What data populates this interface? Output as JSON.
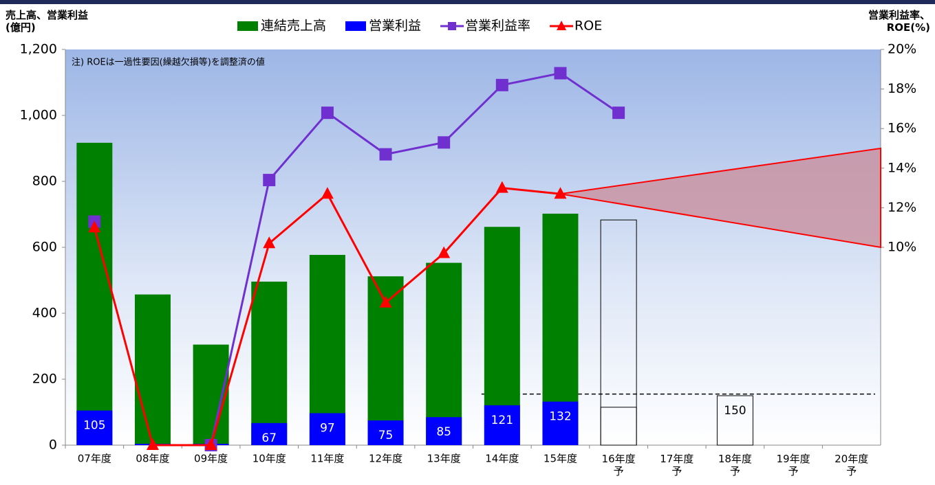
{
  "chart_data": {
    "type": "combo",
    "y_label": "売上高、営業利益\n(億円)",
    "y2_label": "営業利益率、\nROE(%)",
    "annotation": "注) ROEは一過性要因(繰越欠損等)を調整済の値",
    "categories": [
      "07年度",
      "08年度",
      "09年度",
      "10年度",
      "11年度",
      "12年度",
      "13年度",
      "14年度",
      "15年度",
      "16年度\n予",
      "17年度\n予",
      "18年度\n予",
      "19年度\n予",
      "20年度\n予"
    ],
    "ylim": [
      0,
      1200
    ],
    "yticks": [
      0,
      200,
      400,
      600,
      800,
      {
        "value": 1000,
        "label": "1,000"
      },
      {
        "value": 1200,
        "label": "1,200"
      }
    ],
    "y2lim": [
      0,
      20
    ],
    "y2ticks": [
      {
        "value": 10,
        "label": "10%"
      },
      {
        "value": 12,
        "label": "12%"
      },
      {
        "value": 14,
        "label": "14%"
      },
      {
        "value": 16,
        "label": "16%"
      },
      {
        "value": 18,
        "label": "18%"
      },
      {
        "value": 20,
        "label": "20%"
      }
    ],
    "series": [
      {
        "name": "連結売上高",
        "kind": "bar",
        "color": "#008000",
        "values": [
          917,
          457,
          305,
          496,
          577,
          512,
          553,
          662,
          702,
          683,
          null,
          null,
          null,
          null
        ]
      },
      {
        "name": "営業利益",
        "kind": "bar",
        "color": "#0000ff",
        "values": [
          105,
          0,
          0,
          67,
          97,
          75,
          85,
          121,
          132,
          115,
          null,
          150,
          null,
          null
        ],
        "value_labels": [
          "105",
          null,
          null,
          "67",
          "97",
          "75",
          "85",
          "121",
          "132",
          null,
          null,
          "150",
          null,
          null
        ]
      },
      {
        "name": "営業利益率",
        "kind": "line",
        "axis": "y2",
        "color": "#7030d0",
        "marker": "square",
        "values": [
          11.3,
          null,
          0,
          13.4,
          16.8,
          14.7,
          15.3,
          18.2,
          18.8,
          16.8,
          null,
          null,
          null,
          null
        ]
      },
      {
        "name": "ROE",
        "kind": "line",
        "axis": "y2",
        "color": "#ff0000",
        "marker": "triangle",
        "values": [
          11.0,
          0,
          0,
          10.2,
          12.7,
          7.2,
          9.7,
          13.0,
          12.7,
          null,
          null,
          null,
          null,
          null
        ]
      }
    ],
    "roe_target": {
      "low": 10,
      "high": 15
    },
    "target_line": 155
  }
}
